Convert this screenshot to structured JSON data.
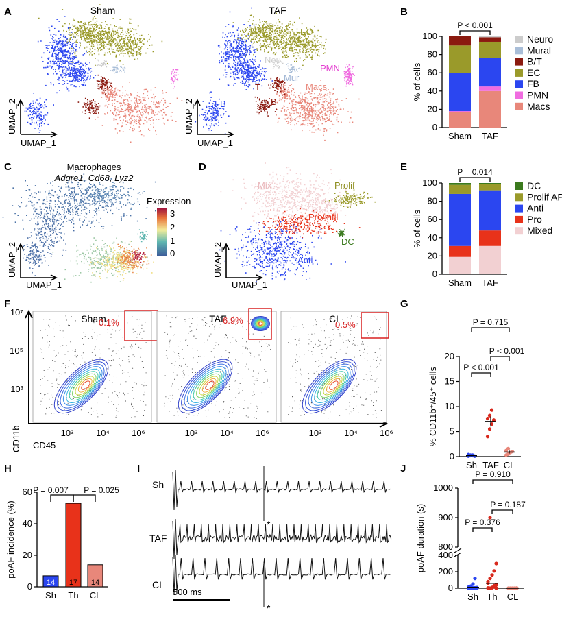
{
  "panels": {
    "A": {
      "label": "A",
      "titles": [
        "Sham",
        "TAF"
      ],
      "x_axis": "UMAP_1",
      "y_axis": "UMAP_2",
      "clusters": [
        "EC",
        "Neu",
        "Mur",
        "PMN",
        "T",
        "B",
        "FB",
        "Macs"
      ]
    },
    "B": {
      "label": "B",
      "pvalue": "P < 0.001"
    },
    "C": {
      "label": "C",
      "title": "Macrophages",
      "genes": "Adgre1, Cd68, Lyz2",
      "legend_title": "Expression",
      "scale_ticks": [
        "3",
        "2",
        "1",
        "0"
      ],
      "x_axis": "UMAP_1",
      "y_axis": "UMAP_2"
    },
    "D": {
      "label": "D",
      "clusters": [
        "Mix",
        "Prolif",
        "Pro/infil",
        "DC",
        "Anti"
      ],
      "x_axis": "UMAP_1",
      "y_axis": "UMAP_2"
    },
    "E": {
      "label": "E",
      "pvalue": "P = 0.014"
    },
    "F": {
      "label": "F",
      "titles": [
        "Sham",
        "TAF",
        "CL"
      ],
      "percents": [
        "0.1%",
        "6.9%",
        "0.5%"
      ],
      "y_ticks": [
        "10⁷",
        "10⁵",
        "10³"
      ],
      "x_ticks": [
        "10²",
        "10⁴",
        "10⁶"
      ],
      "x_axis": "CD45",
      "y_axis": "CD11b"
    },
    "G": {
      "label": "G"
    },
    "H": {
      "label": "H"
    },
    "I": {
      "label": "I",
      "traces": [
        "Sh",
        "TAF",
        "CL"
      ],
      "scale_bar": "500 ms",
      "marker": "*"
    },
    "J": {
      "label": "J"
    }
  },
  "chart_data": [
    {
      "panel": "B",
      "type": "bar",
      "stacked": true,
      "categories": [
        "Sham",
        "TAF"
      ],
      "ylabel": "% of cells",
      "ylim": [
        0,
        100
      ],
      "yticks": [
        "0",
        "20",
        "40",
        "60",
        "80",
        "100"
      ],
      "series": [
        {
          "name": "Macs",
          "color": "#e8877a",
          "values": [
            17,
            40
          ]
        },
        {
          "name": "PMN",
          "color": "#f06ce0",
          "values": [
            1,
            5
          ]
        },
        {
          "name": "FB",
          "color": "#2b46f0",
          "values": [
            42,
            31
          ]
        },
        {
          "name": "EC",
          "color": "#9a9a2a",
          "values": [
            30,
            18
          ]
        },
        {
          "name": "B/T",
          "color": "#8b1a10",
          "values": [
            10,
            5
          ]
        },
        {
          "name": "Mural",
          "color": "#a9bed8",
          "values": [
            0,
            0
          ]
        },
        {
          "name": "Neuro",
          "color": "#cccccc",
          "values": [
            0,
            1
          ]
        }
      ],
      "legend_order": [
        "Neuro",
        "Mural",
        "B/T",
        "EC",
        "FB",
        "PMN",
        "Macs"
      ]
    },
    {
      "panel": "E",
      "type": "bar",
      "stacked": true,
      "categories": [
        "Sham",
        "TAF"
      ],
      "ylabel": "% of cells",
      "ylim": [
        0,
        100
      ],
      "yticks": [
        "0",
        "20",
        "40",
        "60",
        "80",
        "100"
      ],
      "series": [
        {
          "name": "Mixed",
          "color": "#f2d0d2",
          "values": [
            19,
            31
          ]
        },
        {
          "name": "Pro",
          "color": "#e8321a",
          "values": [
            12,
            17
          ]
        },
        {
          "name": "Anti",
          "color": "#2b46f0",
          "values": [
            57,
            44
          ]
        },
        {
          "name": "Prolif APC",
          "color": "#9a9a2a",
          "values": [
            10,
            7
          ]
        },
        {
          "name": "DC",
          "color": "#3b7a1e",
          "values": [
            2,
            1
          ]
        }
      ],
      "legend_order": [
        "DC",
        "Prolif APC",
        "Anti",
        "Pro",
        "Mixed"
      ]
    },
    {
      "panel": "G",
      "type": "scatter",
      "categories": [
        "Sh",
        "TAF",
        "CL"
      ],
      "ylabel": "% CD11b⁺/45⁺ cells",
      "ylim": [
        0,
        20
      ],
      "yticks": [
        "0",
        "5",
        "10",
        "15",
        "20"
      ],
      "means": [
        0.2,
        7.0,
        0.9
      ],
      "sems": [
        0.1,
        1.0,
        0.3
      ],
      "points": [
        [
          0.1,
          0.3,
          0.2,
          0.1,
          0.4,
          0.2,
          0.3
        ],
        [
          4.0,
          5.5,
          6.5,
          7.3,
          7.6,
          8.2,
          9.3
        ],
        [
          0.3,
          0.5,
          0.8,
          1.0,
          1.2,
          1.6
        ]
      ],
      "colors": [
        "#2b46f0",
        "#d8281c",
        "#e8877a"
      ],
      "comparisons": [
        {
          "pair": [
            "Sh",
            "TAF"
          ],
          "label": "P < 0.001"
        },
        {
          "pair": [
            "TAF",
            "CL"
          ],
          "label": "P < 0.001"
        },
        {
          "pair": [
            "Sh",
            "CL"
          ],
          "label": "P = 0.715"
        }
      ]
    },
    {
      "panel": "H",
      "type": "bar",
      "categories": [
        "Sh",
        "Th",
        "CL"
      ],
      "values": [
        7,
        53,
        14
      ],
      "n": [
        "14",
        "17",
        "14"
      ],
      "colors": [
        "#2b46f0",
        "#e8321a",
        "#e8877a"
      ],
      "ylabel": "poAF incidence (%)",
      "ylim": [
        0,
        60
      ],
      "yticks": [
        "0",
        "20",
        "40",
        "60"
      ],
      "comparisons": [
        {
          "pair": [
            "Sh",
            "Th"
          ],
          "label": "P = 0.007"
        },
        {
          "pair": [
            "Th",
            "CL"
          ],
          "label": "P = 0.025"
        }
      ]
    },
    {
      "panel": "J",
      "type": "scatter",
      "categories": [
        "Sh",
        "Th",
        "CL"
      ],
      "ylabel": "poAF duration (s)",
      "yticks_low": [
        "0",
        "200",
        "400"
      ],
      "yticks_high": [
        "800",
        "900",
        "1000"
      ],
      "points": [
        [
          0,
          0,
          2,
          5,
          8,
          15,
          25,
          50,
          120,
          0,
          0,
          0,
          3,
          1
        ],
        [
          0,
          0,
          5,
          15,
          40,
          80,
          120,
          160,
          210,
          300,
          60,
          0,
          10,
          30,
          1,
          3,
          900
        ],
        [
          0,
          0,
          0,
          0,
          2,
          0,
          0,
          0,
          0,
          0,
          0,
          0,
          0,
          0
        ]
      ],
      "colors": [
        "#2b46f0",
        "#d8281c",
        "#e8877a"
      ],
      "comparisons": [
        {
          "pair": [
            "Sh",
            "Th"
          ],
          "label": "P = 0.376"
        },
        {
          "pair": [
            "Th",
            "CL"
          ],
          "label": "P = 0.187"
        },
        {
          "pair": [
            "Sh",
            "CL"
          ],
          "label": "P = 0.910"
        }
      ]
    }
  ]
}
